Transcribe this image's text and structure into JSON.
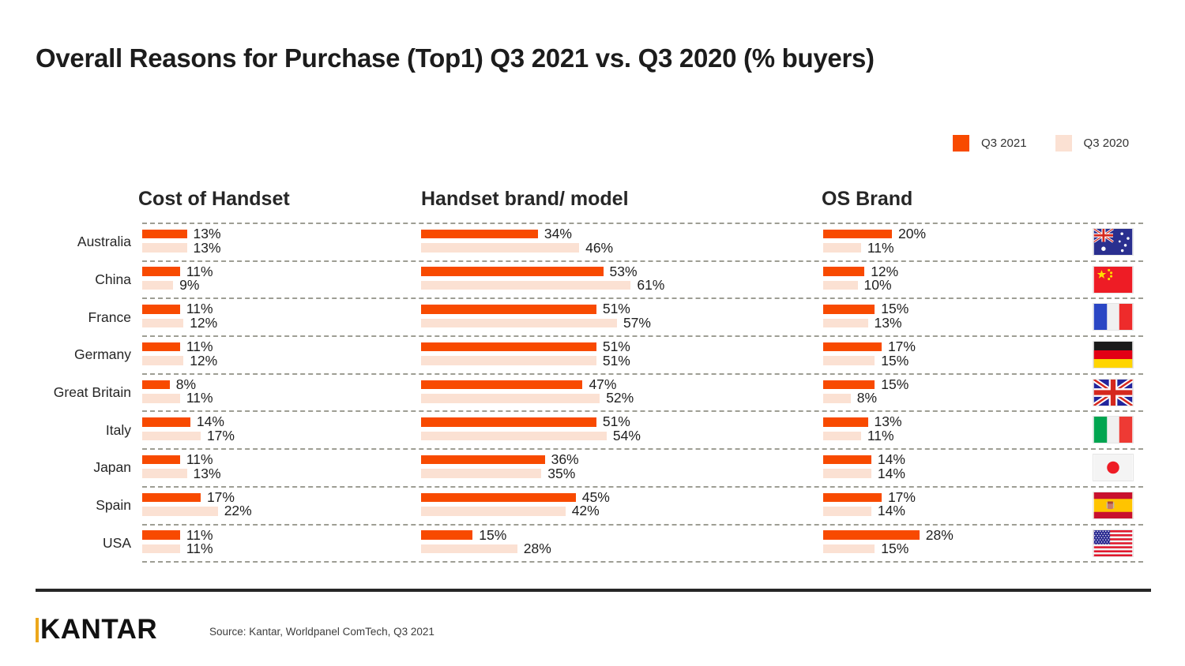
{
  "title": "Overall Reasons for Purchase (Top1) Q3 2021 vs. Q3 2020 (% buyers)",
  "chart_data": {
    "type": "bar",
    "orientation": "horizontal",
    "title": "Overall Reasons for Purchase (Top1) Q3 2021 vs. Q3 2020 (% buyers)",
    "unit": "% buyers",
    "legend_position": "top-right",
    "grid": "dashed row separators",
    "xlim": [
      0,
      65
    ],
    "legend": [
      {
        "label": "Q3 2021",
        "color": "#F84A00"
      },
      {
        "label": "Q3 2020",
        "color": "#FBE1D3"
      }
    ],
    "column_headers": [
      "Cost of Handset",
      "Handset brand/ model",
      "OS Brand"
    ],
    "categories_key": [
      "cost_of_handset",
      "handset_brand_model",
      "os_brand"
    ],
    "series_order": [
      "Q3 2021",
      "Q3 2020"
    ],
    "rows": [
      {
        "country": "Australia",
        "flag": "flag-australia",
        "values": {
          "cost_of_handset": [
            13,
            13
          ],
          "handset_brand_model": [
            34,
            46
          ],
          "os_brand": [
            20,
            11
          ]
        }
      },
      {
        "country": "China",
        "flag": "flag-china",
        "values": {
          "cost_of_handset": [
            11,
            9
          ],
          "handset_brand_model": [
            53,
            61
          ],
          "os_brand": [
            12,
            10
          ]
        }
      },
      {
        "country": "France",
        "flag": "flag-france",
        "values": {
          "cost_of_handset": [
            11,
            12
          ],
          "handset_brand_model": [
            51,
            57
          ],
          "os_brand": [
            15,
            13
          ]
        }
      },
      {
        "country": "Germany",
        "flag": "flag-germany",
        "values": {
          "cost_of_handset": [
            11,
            12
          ],
          "handset_brand_model": [
            51,
            51
          ],
          "os_brand": [
            17,
            15
          ]
        }
      },
      {
        "country": "Great Britain",
        "flag": "flag-great-britain",
        "values": {
          "cost_of_handset": [
            8,
            11
          ],
          "handset_brand_model": [
            47,
            52
          ],
          "os_brand": [
            15,
            8
          ]
        }
      },
      {
        "country": "Italy",
        "flag": "flag-italy",
        "values": {
          "cost_of_handset": [
            14,
            17
          ],
          "handset_brand_model": [
            51,
            54
          ],
          "os_brand": [
            13,
            11
          ]
        }
      },
      {
        "country": "Japan",
        "flag": "flag-japan",
        "values": {
          "cost_of_handset": [
            11,
            13
          ],
          "handset_brand_model": [
            36,
            35
          ],
          "os_brand": [
            14,
            14
          ]
        }
      },
      {
        "country": "Spain",
        "flag": "flag-spain",
        "values": {
          "cost_of_handset": [
            17,
            22
          ],
          "handset_brand_model": [
            45,
            42
          ],
          "os_brand": [
            17,
            14
          ]
        }
      },
      {
        "country": "USA",
        "flag": "flag-usa",
        "values": {
          "cost_of_handset": [
            11,
            11
          ],
          "handset_brand_model": [
            15,
            28
          ],
          "os_brand": [
            28,
            15
          ]
        }
      }
    ]
  },
  "footer": {
    "logo": "KANTAR",
    "source": "Source: Kantar, Worldpanel ComTech, Q3 2021"
  }
}
